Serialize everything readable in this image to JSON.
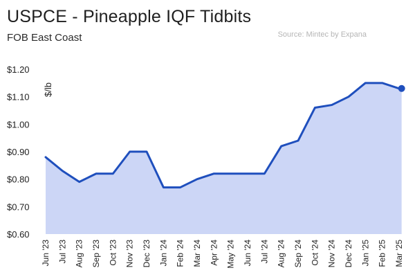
{
  "header": {
    "title": "USPCE - Pineapple IQF Tidbits",
    "subtitle": "FOB East Coast",
    "source": "Source: Mintec by Expana"
  },
  "colors": {
    "line": "#1f4fbd",
    "fill": "#ccd6f6",
    "text": "#222222"
  },
  "chart_data": {
    "type": "area",
    "title": "USPCE - Pineapple IQF Tidbits",
    "subtitle": "FOB East Coast",
    "xlabel": "",
    "ylabel": "$/lb",
    "ylim": [
      0.6,
      1.2
    ],
    "yticks": [
      "$0.60",
      "$0.70",
      "$0.80",
      "$0.90",
      "$1.00",
      "$1.10",
      "$1.20"
    ],
    "ytick_values": [
      0.6,
      0.7,
      0.8,
      0.9,
      1.0,
      1.1,
      1.2
    ],
    "categories": [
      "Jun '23",
      "Jul '23",
      "Aug '23",
      "Sep '23",
      "Oct '23",
      "Nov '23",
      "Dec '23",
      "Jan '24",
      "Feb '24",
      "Mar '24",
      "Apr '24",
      "May '24",
      "Jun '24",
      "Jul '24",
      "Aug '24",
      "Sep '24",
      "Oct '24",
      "Nov '24",
      "Dec '24",
      "Jan '25",
      "Feb '25",
      "Mar '25"
    ],
    "series": [
      {
        "name": "USPCE - Pineapple IQF Tidbits",
        "x": [
          0,
          1,
          2,
          3,
          4,
          5,
          6,
          7,
          8,
          9,
          10,
          11,
          12,
          13,
          14,
          15,
          16,
          17,
          18,
          19,
          20,
          21,
          21.15
        ],
        "values": [
          0.88,
          0.83,
          0.79,
          0.82,
          0.82,
          0.9,
          0.9,
          0.77,
          0.77,
          0.8,
          0.82,
          0.82,
          0.82,
          0.82,
          0.92,
          0.94,
          1.06,
          1.07,
          1.1,
          1.15,
          1.15,
          1.13,
          1.13
        ]
      }
    ],
    "end_marker": true,
    "grid": false,
    "legend": "none"
  }
}
